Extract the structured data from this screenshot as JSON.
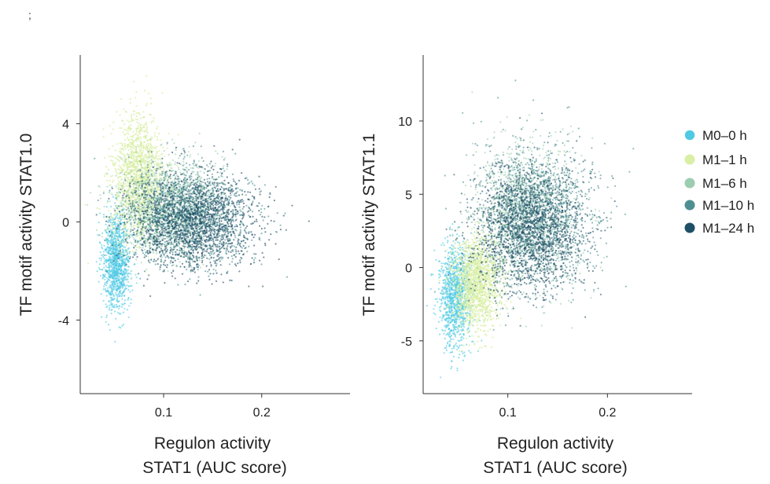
{
  "panel_marker": ";",
  "chart_data": [
    {
      "type": "scatter",
      "title": "",
      "xlabel": [
        "Regulon activity",
        "STAT1 (AUC score)"
      ],
      "ylabel": "TF motif activity STAT1.0",
      "xlim": [
        0.015,
        0.29
      ],
      "ylim": [
        -7.0,
        6.8
      ],
      "xticks": [
        0.1,
        0.2
      ],
      "xtick_labels": [
        "0.1",
        "0.2"
      ],
      "yticks": [
        4,
        0,
        -4
      ],
      "ytick_labels": [
        "4",
        "0",
        "-4"
      ],
      "grid": false,
      "series": [
        {
          "name": "M0–0 h",
          "color": "#4fc9e4",
          "center": [
            0.052,
            -1.6
          ],
          "spread": [
            0.007,
            1.0
          ]
        },
        {
          "name": "M1–1 h",
          "color": "#d9efa6",
          "center": [
            0.074,
            1.8
          ],
          "spread": [
            0.013,
            1.25
          ]
        },
        {
          "name": "M1–6 h",
          "color": "#9ccdb1",
          "center": [
            0.105,
            0.6
          ],
          "spread": [
            0.025,
            1.0
          ]
        },
        {
          "name": "M1–10 h",
          "color": "#4f8f92",
          "center": [
            0.125,
            0.25
          ],
          "spread": [
            0.032,
            0.95
          ]
        },
        {
          "name": "M1–24 h",
          "color": "#1f4f66",
          "center": [
            0.128,
            0.0
          ],
          "spread": [
            0.033,
            0.95
          ]
        }
      ]
    },
    {
      "type": "scatter",
      "title": "",
      "xlabel": [
        "Regulon activity",
        "STAT1 (AUC score)"
      ],
      "ylabel": "TF motif activity STAT1.1",
      "xlim": [
        0.015,
        0.285
      ],
      "ylim": [
        -8.6,
        14.5
      ],
      "xticks": [
        0.1,
        0.2
      ],
      "xtick_labels": [
        "0.1",
        "0.2"
      ],
      "yticks": [
        10,
        5,
        0,
        -5
      ],
      "ytick_labels": [
        "10",
        "5",
        "0",
        "-5"
      ],
      "grid": false,
      "series": [
        {
          "name": "M0–0 h",
          "color": "#4fc9e4",
          "center": [
            0.047,
            -2.0
          ],
          "spread": [
            0.008,
            1.7
          ]
        },
        {
          "name": "M1–1 h",
          "color": "#d9efa6",
          "center": [
            0.068,
            -1.0
          ],
          "spread": [
            0.012,
            1.6
          ]
        },
        {
          "name": "M1–6 h",
          "color": "#9ccdb1",
          "center": [
            0.118,
            3.6
          ],
          "spread": [
            0.026,
            2.4
          ]
        },
        {
          "name": "M1–10 h",
          "color": "#4f8f92",
          "center": [
            0.128,
            3.4
          ],
          "spread": [
            0.03,
            2.4
          ]
        },
        {
          "name": "M1–24 h",
          "color": "#1f4f66",
          "center": [
            0.12,
            2.6
          ],
          "spread": [
            0.027,
            2.1
          ]
        }
      ]
    }
  ],
  "legend": {
    "placement": "right",
    "entries": [
      {
        "label": "M0–0 h",
        "color": "#4fc9e4"
      },
      {
        "label": "M1–1 h",
        "color": "#d9efa6"
      },
      {
        "label": "M1–6 h",
        "color": "#9ccdb1"
      },
      {
        "label": "M1–10 h",
        "color": "#4f8f92"
      },
      {
        "label": "M1–24 h",
        "color": "#1f4f66"
      }
    ]
  }
}
